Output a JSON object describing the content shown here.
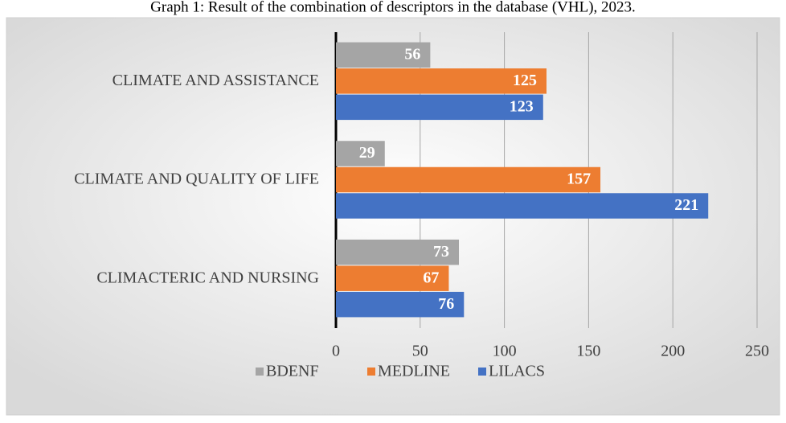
{
  "chart_data": {
    "type": "hbar",
    "title": "Graph 1: Result of the combination of descriptors in the database (VHL), 2023.",
    "categories": [
      "CLIMATE AND ASSISTANCE",
      "CLIMATE AND QUALITY OF LIFE",
      "CLIMACTERIC AND NURSING"
    ],
    "series": [
      {
        "name": "BDENF",
        "color": "#a5a5a5",
        "values": [
          56,
          29,
          73
        ]
      },
      {
        "name": "MEDLINE",
        "color": "#ed7d31",
        "values": [
          125,
          157,
          67
        ]
      },
      {
        "name": "LILACS",
        "color": "#4472c4",
        "values": [
          123,
          221,
          76
        ]
      }
    ],
    "xlim": [
      0,
      250
    ],
    "xticks": [
      0,
      50,
      100,
      150,
      200,
      250
    ],
    "grid": true,
    "legend": "bottom"
  }
}
